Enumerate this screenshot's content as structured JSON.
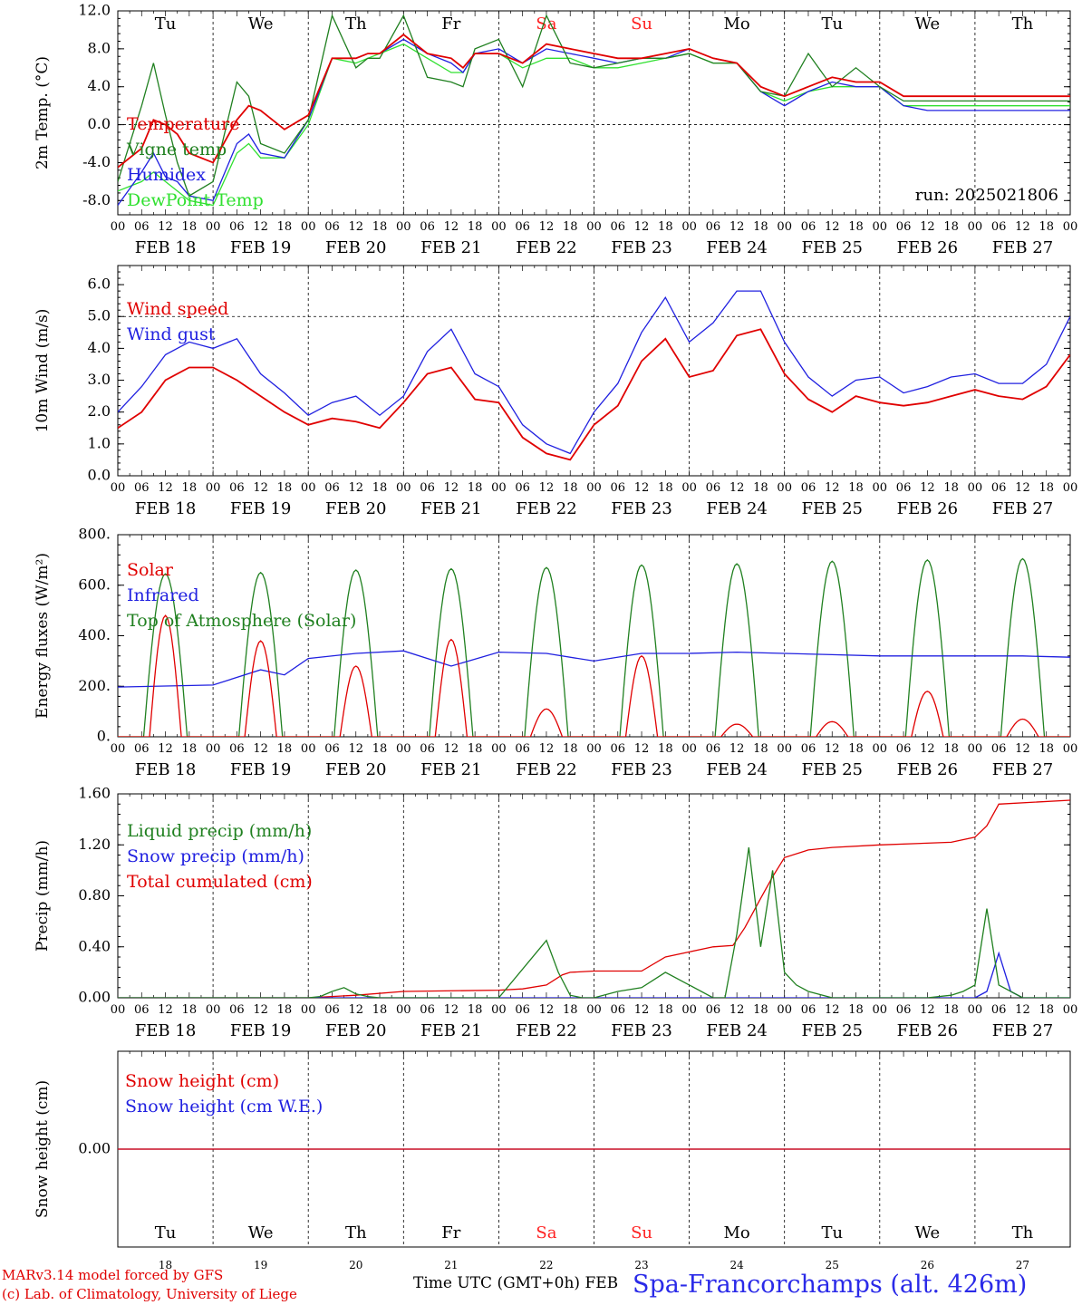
{
  "run_label": "run: 2025021806",
  "x_axis": {
    "title": "Time UTC (GMT+0h) FEB",
    "hour_ticks": [
      "00",
      "06",
      "12",
      "18"
    ],
    "end_tick": "00",
    "date_labels": [
      "FEB 18",
      "FEB 19",
      "FEB 20",
      "FEB 21",
      "FEB 22",
      "FEB 23",
      "FEB 24",
      "FEB 25",
      "FEB 26",
      "FEB 27"
    ],
    "day_names": [
      "Tu",
      "We",
      "Th",
      "Fr",
      "Sa",
      "Su",
      "Mo",
      "Tu",
      "We",
      "Th"
    ],
    "day_numbers": [
      "18",
      "19",
      "20",
      "21",
      "22",
      "23",
      "24",
      "25",
      "26",
      "27"
    ],
    "weekend_color": "#ff2020"
  },
  "footer": {
    "credit_line1": "MARv3.14 model forced by GFS",
    "credit_line2": "(c) Lab. of Climatology, University of Liege",
    "station": "Spa-Francorchamps (alt. 426m)"
  },
  "chart_data": [
    {
      "type": "line",
      "ylabel": "2m Temp. (°C)",
      "ylim": [
        -9.5,
        12.0
      ],
      "yticks": [
        12.0,
        8.0,
        4.0,
        0.0,
        -4.0,
        -8.0
      ],
      "ytick_labels": [
        "12.0",
        "8.0",
        "4.0",
        "0.0",
        "-4.0",
        "-8.0"
      ],
      "x_unit": "hours since FEB 18 00 UTC",
      "x": [
        0,
        6,
        9,
        12,
        15,
        18,
        24,
        30,
        33,
        36,
        42,
        48,
        54,
        60,
        63,
        66,
        72,
        78,
        84,
        87,
        90,
        96,
        102,
        108,
        114,
        120,
        126,
        132,
        138,
        144,
        150,
        156,
        162,
        168,
        174,
        180,
        186,
        192,
        198,
        204,
        210,
        216,
        222,
        228,
        234,
        240
      ],
      "series": [
        {
          "name": "Temperature",
          "color": "#e00000",
          "values": [
            -4.5,
            -2.5,
            0.5,
            0.0,
            -1.0,
            -3.0,
            -4.0,
            0.5,
            2.0,
            1.5,
            -0.5,
            1.0,
            7.0,
            7.0,
            7.5,
            7.5,
            9.5,
            7.5,
            7.0,
            6.0,
            7.5,
            7.5,
            6.5,
            8.5,
            8.0,
            7.5,
            7.0,
            7.0,
            7.5,
            8.0,
            7.0,
            6.5,
            4.0,
            3.0,
            4.0,
            5.0,
            4.5,
            4.5,
            3.0,
            3.0,
            3.0,
            3.0,
            3.0,
            3.0,
            3.0,
            3.0
          ]
        },
        {
          "name": "Vigne temp",
          "color": "#208020",
          "values": [
            -6.0,
            2.0,
            6.5,
            1.0,
            -4.0,
            -7.5,
            -6.0,
            4.5,
            3.0,
            -2.0,
            -3.0,
            0.5,
            11.5,
            6.0,
            7.0,
            7.0,
            11.5,
            5.0,
            4.5,
            4.0,
            8.0,
            9.0,
            4.0,
            11.5,
            6.5,
            6.0,
            6.5,
            7.0,
            7.0,
            7.5,
            6.5,
            6.5,
            3.5,
            3.0,
            7.5,
            4.0,
            6.0,
            4.0,
            2.5,
            2.5,
            2.5,
            2.5,
            2.5,
            2.5,
            2.5,
            2.5
          ]
        },
        {
          "name": "Humidex",
          "color": "#2020e0",
          "values": [
            -8.5,
            -5.0,
            -3.0,
            -5.5,
            -6.0,
            -7.5,
            -8.0,
            -2.0,
            -1.0,
            -3.0,
            -3.5,
            0.5,
            7.0,
            7.0,
            7.5,
            7.5,
            9.0,
            7.5,
            6.5,
            5.5,
            7.5,
            8.0,
            6.5,
            8.0,
            7.5,
            7.0,
            6.5,
            7.0,
            7.0,
            8.0,
            7.0,
            6.5,
            3.5,
            2.0,
            3.5,
            4.5,
            4.0,
            4.0,
            2.0,
            1.5,
            1.5,
            1.5,
            1.5,
            1.5,
            1.5,
            1.5
          ]
        },
        {
          "name": "DewPoint Temp",
          "color": "#30e030",
          "values": [
            -7.0,
            -6.0,
            -5.0,
            -6.0,
            -7.0,
            -8.0,
            -8.5,
            -3.0,
            -2.0,
            -3.5,
            -3.5,
            0.0,
            7.0,
            6.5,
            7.0,
            7.5,
            8.5,
            7.0,
            5.5,
            5.5,
            7.5,
            7.5,
            6.0,
            7.0,
            7.0,
            6.0,
            6.0,
            6.5,
            7.0,
            7.5,
            6.5,
            6.5,
            3.5,
            2.5,
            3.5,
            4.0,
            4.0,
            4.0,
            2.0,
            2.0,
            2.0,
            2.0,
            2.0,
            2.0,
            2.0,
            2.0
          ]
        }
      ]
    },
    {
      "type": "line",
      "ylabel": "10m Wind (m/s)",
      "ylim": [
        0,
        6.6
      ],
      "yticks": [
        0,
        1,
        2,
        3,
        4,
        5,
        6
      ],
      "ytick_labels": [
        "0.0",
        "1.0",
        "2.0",
        "3.0",
        "4.0",
        "5.0",
        "6.0"
      ],
      "reference_line": 5.0,
      "x_unit": "hours since FEB 18 00 UTC",
      "x": [
        0,
        6,
        12,
        18,
        24,
        30,
        36,
        42,
        48,
        54,
        60,
        66,
        72,
        78,
        84,
        90,
        96,
        102,
        108,
        114,
        120,
        126,
        132,
        138,
        144,
        150,
        156,
        162,
        168,
        174,
        180,
        186,
        192,
        198,
        204,
        210,
        216,
        222,
        228,
        234,
        240
      ],
      "series": [
        {
          "name": "Wind speed",
          "color": "#e00000",
          "values": [
            1.5,
            2.0,
            3.0,
            3.4,
            3.4,
            3.0,
            2.5,
            2.0,
            1.6,
            1.8,
            1.7,
            1.5,
            2.3,
            3.2,
            3.4,
            2.4,
            2.3,
            1.2,
            0.7,
            0.5,
            1.6,
            2.2,
            3.6,
            4.3,
            3.1,
            3.3,
            4.4,
            4.6,
            3.2,
            2.4,
            2.0,
            2.5,
            2.3,
            2.2,
            2.3,
            2.5,
            2.7,
            2.5,
            2.4,
            2.8,
            3.8
          ]
        },
        {
          "name": "Wind gust",
          "color": "#2020e0",
          "values": [
            2.0,
            2.8,
            3.8,
            4.2,
            4.0,
            4.3,
            3.2,
            2.6,
            1.9,
            2.3,
            2.5,
            1.9,
            2.5,
            3.9,
            4.6,
            3.2,
            2.8,
            1.6,
            1.0,
            0.7,
            2.0,
            2.9,
            4.5,
            5.6,
            4.2,
            4.8,
            5.8,
            5.8,
            4.2,
            3.1,
            2.5,
            3.0,
            3.1,
            2.6,
            2.8,
            3.1,
            3.2,
            2.9,
            2.9,
            3.5,
            5.0
          ]
        }
      ]
    },
    {
      "type": "line",
      "ylabel": "Energy fluxes (W/m²)",
      "ylim": [
        0,
        800
      ],
      "yticks": [
        0,
        200,
        400,
        600,
        800
      ],
      "ytick_labels": [
        "0.",
        "200.",
        "400.",
        "600.",
        "800."
      ],
      "series": [
        {
          "name": "Solar",
          "color": "#e00000",
          "daily_peak_values": [
            480,
            380,
            280,
            385,
            110,
            320,
            50,
            60,
            180,
            70
          ]
        },
        {
          "name": "Infrared",
          "color": "#2020e0",
          "x": [
            0,
            24,
            36,
            42,
            48,
            60,
            72,
            84,
            96,
            108,
            120,
            132,
            144,
            156,
            168,
            180,
            192,
            204,
            216,
            228,
            240
          ],
          "values": [
            197,
            205,
            265,
            245,
            310,
            330,
            340,
            280,
            335,
            330,
            300,
            330,
            330,
            335,
            330,
            325,
            320,
            320,
            320,
            320,
            315
          ]
        },
        {
          "name": "Top of Atmosphere (Solar)",
          "color": "#208020",
          "daily_peak_values": [
            645,
            650,
            660,
            665,
            670,
            680,
            685,
            695,
            700,
            705
          ]
        }
      ]
    },
    {
      "type": "line",
      "ylabel": "Precip (mm/h)",
      "ylim": [
        0,
        1.6
      ],
      "yticks": [
        0,
        0.4,
        0.8,
        1.2,
        1.6
      ],
      "ytick_labels": [
        "0.00",
        "0.40",
        "0.80",
        "1.20",
        "1.60"
      ],
      "x_unit": "hours since FEB 18 00 UTC",
      "series": [
        {
          "name": "Liquid precip (mm/h)",
          "color": "#208020",
          "x": [
            0,
            48,
            51,
            54,
            57,
            60,
            63,
            66,
            72,
            84,
            96,
            108,
            111,
            114,
            117,
            120,
            126,
            132,
            138,
            144,
            150,
            153,
            156,
            159,
            162,
            165,
            168,
            171,
            174,
            180,
            192,
            204,
            210,
            213,
            216,
            219,
            222,
            228,
            240
          ],
          "values": [
            0,
            0,
            0.01,
            0.05,
            0.08,
            0.03,
            0.01,
            0,
            0,
            0,
            0,
            0.45,
            0.2,
            0.02,
            0,
            0,
            0.05,
            0.08,
            0.2,
            0.1,
            0,
            0,
            0.5,
            1.18,
            0.4,
            1.0,
            0.2,
            0.1,
            0.05,
            0,
            0,
            0,
            0.02,
            0.05,
            0.1,
            0.7,
            0.1,
            0,
            0
          ]
        },
        {
          "name": "Snow precip (mm/h)",
          "color": "#2020e0",
          "x": [
            0,
            216,
            219,
            222,
            225,
            228,
            240
          ],
          "values": [
            0,
            0,
            0.05,
            0.35,
            0.05,
            0,
            0
          ]
        },
        {
          "name": "Total cumulated (cm)",
          "color": "#e00000",
          "x": [
            0,
            48,
            60,
            72,
            96,
            102,
            108,
            112,
            114,
            120,
            132,
            138,
            144,
            150,
            155,
            158,
            162,
            165,
            168,
            174,
            180,
            192,
            210,
            216,
            219,
            222,
            240
          ],
          "values": [
            0,
            0,
            0.02,
            0.05,
            0.06,
            0.07,
            0.1,
            0.18,
            0.2,
            0.21,
            0.21,
            0.32,
            0.36,
            0.4,
            0.41,
            0.55,
            0.78,
            0.95,
            1.1,
            1.16,
            1.18,
            1.2,
            1.22,
            1.26,
            1.35,
            1.52,
            1.55
          ]
        }
      ]
    },
    {
      "type": "line",
      "ylabel": "Snow height (cm)",
      "ylim": [
        -1,
        1
      ],
      "yticks": [
        0
      ],
      "ytick_labels": [
        "0.00"
      ],
      "series": [
        {
          "name": "Snow height (cm)",
          "color": "#e00000",
          "x": [
            0,
            240
          ],
          "values": [
            0,
            0
          ]
        },
        {
          "name": "Snow height (cm W.E.)",
          "color": "#2020e0",
          "x": [
            0,
            240
          ],
          "values": [
            0,
            0
          ]
        }
      ]
    }
  ]
}
